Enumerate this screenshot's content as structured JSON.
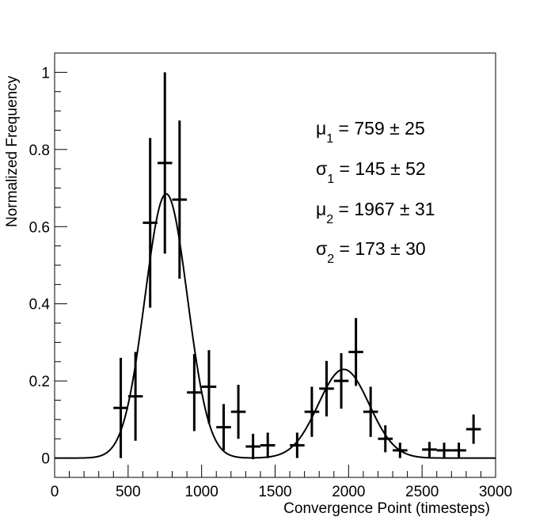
{
  "chart_data": {
    "type": "scatter",
    "xlabel": "Convergence Point (timesteps)",
    "ylabel": "Normalized Frequency",
    "xlim": [
      0,
      3000
    ],
    "ylim": [
      -0.05,
      1.05
    ],
    "x_ticks": [
      0,
      500,
      1000,
      1500,
      2000,
      2500,
      3000
    ],
    "y_ticks": [
      0,
      0.2,
      0.4,
      0.6,
      0.8,
      1
    ],
    "x_tick_labels": [
      "0",
      "500",
      "1000",
      "1500",
      "2000",
      "2500",
      "3000"
    ],
    "y_tick_labels": [
      "0",
      "0.2",
      "0.4",
      "0.6",
      "0.8",
      "1"
    ],
    "bin_width": 100,
    "points": [
      {
        "x": 450,
        "y": 0.13,
        "err": 0.13
      },
      {
        "x": 550,
        "y": 0.16,
        "err": 0.115
      },
      {
        "x": 650,
        "y": 0.61,
        "err": 0.22
      },
      {
        "x": 750,
        "y": 0.765,
        "err": 0.235
      },
      {
        "x": 850,
        "y": 0.67,
        "err": 0.205
      },
      {
        "x": 950,
        "y": 0.17,
        "err": 0.1
      },
      {
        "x": 1050,
        "y": 0.185,
        "err": 0.095
      },
      {
        "x": 1150,
        "y": 0.08,
        "err": 0.06
      },
      {
        "x": 1250,
        "y": 0.12,
        "err": 0.07
      },
      {
        "x": 1350,
        "y": 0.03,
        "err": 0.033
      },
      {
        "x": 1450,
        "y": 0.033,
        "err": 0.033
      },
      {
        "x": 1650,
        "y": 0.033,
        "err": 0.033
      },
      {
        "x": 1750,
        "y": 0.12,
        "err": 0.065
      },
      {
        "x": 1850,
        "y": 0.18,
        "err": 0.072
      },
      {
        "x": 1950,
        "y": 0.2,
        "err": 0.072
      },
      {
        "x": 2050,
        "y": 0.275,
        "err": 0.088
      },
      {
        "x": 2150,
        "y": 0.12,
        "err": 0.065
      },
      {
        "x": 2250,
        "y": 0.05,
        "err": 0.035
      },
      {
        "x": 2350,
        "y": 0.02,
        "err": 0.02
      },
      {
        "x": 2550,
        "y": 0.022,
        "err": 0.02
      },
      {
        "x": 2650,
        "y": 0.02,
        "err": 0.02
      },
      {
        "x": 2750,
        "y": 0.02,
        "err": 0.02
      },
      {
        "x": 2850,
        "y": 0.075,
        "err": 0.038
      }
    ],
    "fit": {
      "function": "double_gaussian",
      "components": [
        {
          "amplitude": 0.685,
          "mean": 759,
          "sigma": 145
        },
        {
          "amplitude": 0.23,
          "mean": 1967,
          "sigma": 173
        }
      ]
    },
    "annotations": [
      {
        "symbol": "μ",
        "sub": "1",
        "text": " = 759 ± 25"
      },
      {
        "symbol": "σ",
        "sub": "1",
        "text": " = 145 ± 52"
      },
      {
        "symbol": "μ",
        "sub": "2",
        "text": " = 1967 ± 31"
      },
      {
        "symbol": "σ",
        "sub": "2",
        "text": " = 173 ± 30"
      }
    ],
    "grid": false,
    "legend": "none",
    "colors": {
      "markers": "#000000",
      "fit_line": "#000000",
      "frame": "#000000"
    }
  }
}
